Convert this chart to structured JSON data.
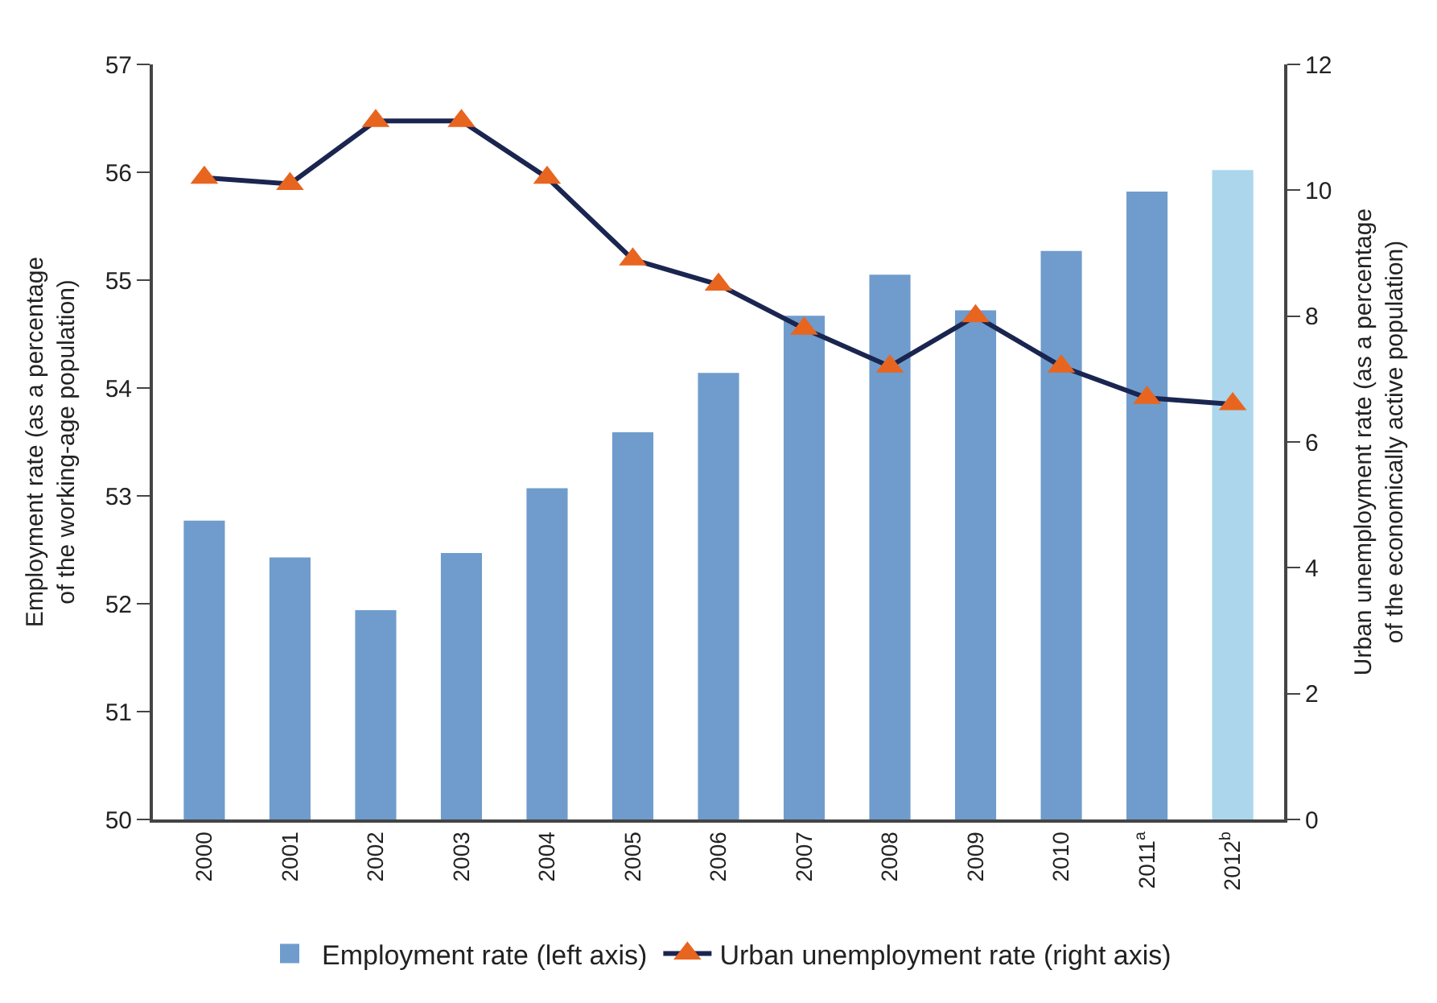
{
  "chart_data": {
    "type": "bar",
    "categories": [
      "2000",
      "2001",
      "2002",
      "2003",
      "2004",
      "2005",
      "2006",
      "2007",
      "2008",
      "2009",
      "2010",
      "2011$^{a}$",
      "2012$^{b}$"
    ],
    "series": [
      {
        "name": "Employment rate (left axis)",
        "color": "#6f9ccc",
        "colors": [
          "#6f9ccc",
          "#6f9ccc",
          "#6f9ccc",
          "#6f9ccc",
          "#6f9ccc",
          "#6f9ccc",
          "#6f9ccc",
          "#6f9ccc",
          "#6f9ccc",
          "#6f9ccc",
          "#6f9ccc",
          "#6f9ccc",
          "#acd6ec"
        ],
        "values": [
          52.77,
          52.43,
          51.94,
          52.47,
          53.07,
          53.59,
          54.14,
          54.67,
          55.05,
          54.72,
          55.27,
          55.82,
          56.02
        ]
      },
      {
        "name": "Urban unemployment rate (right axis)",
        "type": "line",
        "axis": "y2",
        "color": "#1a2550",
        "colors": [
          "#e8651f",
          "#e8651f",
          "#e8651f",
          "#e8651f",
          "#e8651f",
          "#e8651f",
          "#e8651f",
          "#e8651f",
          "#e8651f",
          "#e8651f",
          "#e8651f",
          "#e8651f",
          "#e8651f"
        ],
        "values": [
          10.2,
          10.1,
          11.1,
          11.1,
          10.2,
          8.9,
          8.5,
          7.8,
          7.2,
          8.0,
          7.2,
          6.7,
          6.6
        ]
      }
    ],
    "ylabel": "Employment rate (as a percentage\nof the working-age population)",
    "y2label": "Urban unemployment rate (as a percentage\nof the economically active population)",
    "ylim": [
      50,
      57
    ],
    "yticks": [
      50,
      51,
      52,
      53,
      54,
      55,
      56,
      57
    ],
    "y2lim": [
      0,
      12
    ],
    "y2ticks": [
      0,
      2,
      4,
      6,
      8,
      10,
      12
    ],
    "marker": "triangle",
    "line_style": "solid",
    "legend": "bottom"
  }
}
